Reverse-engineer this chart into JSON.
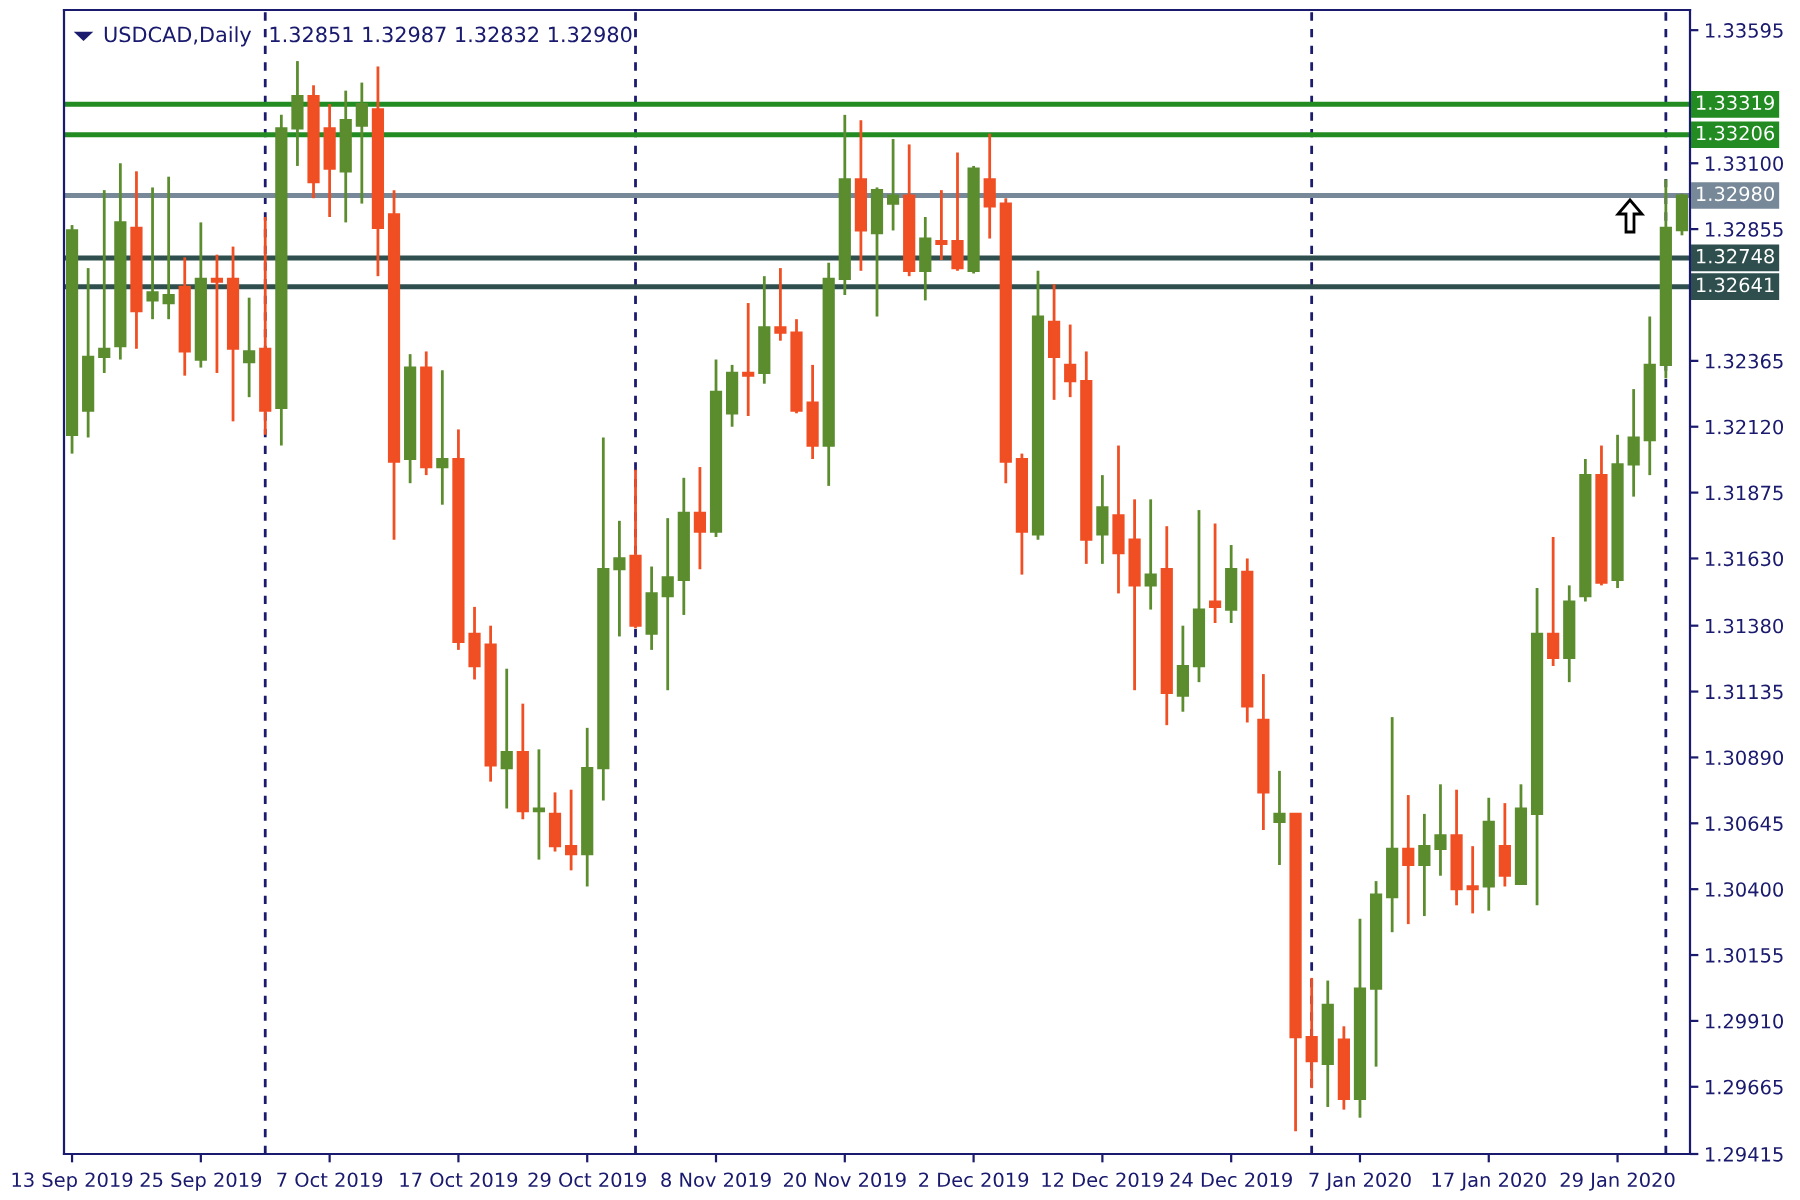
{
  "chart_data": {
    "type": "candlestick",
    "title": "USDCAD,Daily",
    "subtitle": "1.32851 1.32987 1.32832 1.32980",
    "categories": [
      "13 Sep 2019",
      null,
      null,
      null,
      null,
      null,
      null,
      null,
      "25 Sep 2019",
      null,
      null,
      null,
      null,
      null,
      null,
      null,
      "7 Oct 2019",
      null,
      null,
      null,
      null,
      null,
      null,
      null,
      "17 Oct 2019",
      null,
      null,
      null,
      null,
      null,
      null,
      null,
      "29 Oct 2019",
      null,
      null,
      null,
      null,
      null,
      null,
      null,
      "8 Nov 2019",
      null,
      null,
      null,
      null,
      null,
      null,
      null,
      "20 Nov 2019",
      null,
      null,
      null,
      null,
      null,
      null,
      null,
      "2 Dec 2019",
      null,
      null,
      null,
      null,
      null,
      null,
      null,
      "12 Dec 2019",
      null,
      null,
      null,
      null,
      null,
      null,
      null,
      "24 Dec 2019",
      null,
      null,
      null,
      null,
      null,
      null,
      null,
      "7 Jan 2020",
      null,
      null,
      null,
      null,
      null,
      null,
      null,
      "17 Jan 2020",
      null,
      null,
      null,
      null,
      null,
      null,
      null,
      "29 Jan 2020",
      null,
      null,
      null,
      null
    ],
    "ohlc": [
      [
        1.3209,
        1.3287,
        1.3202,
        1.3285
      ],
      [
        1.3218,
        1.3271,
        1.3208,
        1.3238
      ],
      [
        1.3238,
        1.33,
        1.3232,
        1.3241
      ],
      [
        1.3242,
        1.331,
        1.3237,
        1.3288
      ],
      [
        1.3286,
        1.3307,
        1.3241,
        1.3255
      ],
      [
        1.3259,
        1.3301,
        1.3252,
        1.3262
      ],
      [
        1.3258,
        1.3305,
        1.3252,
        1.3261
      ],
      [
        1.3264,
        1.3275,
        1.3231,
        1.324
      ],
      [
        1.3237,
        1.3288,
        1.3234,
        1.3267
      ],
      [
        1.3267,
        1.3276,
        1.3232,
        1.3266
      ],
      [
        1.3267,
        1.3279,
        1.3214,
        1.3241
      ],
      [
        1.3236,
        1.326,
        1.3223,
        1.324
      ],
      [
        1.3241,
        1.329,
        1.3209,
        1.3218
      ],
      [
        1.3219,
        1.3328,
        1.3205,
        1.3323
      ],
      [
        1.3323,
        1.3348,
        1.3309,
        1.3335
      ],
      [
        1.3335,
        1.3339,
        1.3297,
        1.3303
      ],
      [
        1.3323,
        1.3332,
        1.329,
        1.3308
      ],
      [
        1.3307,
        1.3337,
        1.3288,
        1.3326
      ],
      [
        1.3324,
        1.334,
        1.3295,
        1.3332
      ],
      [
        1.333,
        1.3346,
        1.3268,
        1.3286
      ],
      [
        1.3291,
        1.33,
        1.317,
        1.3199
      ],
      [
        1.32,
        1.3239,
        1.3191,
        1.3234
      ],
      [
        1.3234,
        1.324,
        1.3194,
        1.3197
      ],
      [
        1.3197,
        1.3233,
        1.3183,
        1.32
      ],
      [
        1.32,
        1.3211,
        1.3129,
        1.3132
      ],
      [
        1.3135,
        1.3145,
        1.3118,
        1.3123
      ],
      [
        1.3131,
        1.3138,
        1.308,
        1.3086
      ],
      [
        1.3085,
        1.3122,
        1.307,
        1.3091
      ],
      [
        1.3091,
        1.3109,
        1.3066,
        1.3069
      ],
      [
        1.3069,
        1.3092,
        1.3051,
        1.307
      ],
      [
        1.3068,
        1.3076,
        1.3054,
        1.3056
      ],
      [
        1.3056,
        1.3077,
        1.3047,
        1.3053
      ],
      [
        1.3053,
        1.31,
        1.3041,
        1.3085
      ],
      [
        1.3085,
        1.3208,
        1.3073,
        1.3159
      ],
      [
        1.3159,
        1.3177,
        1.3134,
        1.3163
      ],
      [
        1.3164,
        1.3196,
        1.3137,
        1.3138
      ],
      [
        1.3135,
        1.316,
        1.3129,
        1.315
      ],
      [
        1.3149,
        1.3178,
        1.3114,
        1.3156
      ],
      [
        1.3155,
        1.3193,
        1.3142,
        1.318
      ],
      [
        1.318,
        1.3197,
        1.3159,
        1.3173
      ],
      [
        1.3173,
        1.3237,
        1.3171,
        1.3225
      ],
      [
        1.3217,
        1.3235,
        1.3212,
        1.3232
      ],
      [
        1.3232,
        1.3258,
        1.3216,
        1.3231
      ],
      [
        1.3232,
        1.3268,
        1.3228,
        1.3249
      ],
      [
        1.3249,
        1.3271,
        1.3244,
        1.3247
      ],
      [
        1.3247,
        1.3252,
        1.3217,
        1.3218
      ],
      [
        1.3221,
        1.3235,
        1.32,
        1.3205
      ],
      [
        1.3205,
        1.3273,
        1.319,
        1.3267
      ],
      [
        1.3267,
        1.3328,
        1.3261,
        1.3304
      ],
      [
        1.3304,
        1.3326,
        1.327,
        1.3285
      ],
      [
        1.3284,
        1.3301,
        1.3253,
        1.33
      ],
      [
        1.3295,
        1.3319,
        1.3285,
        1.3298
      ],
      [
        1.3298,
        1.3317,
        1.3268,
        1.327
      ],
      [
        1.327,
        1.329,
        1.3259,
        1.3282
      ],
      [
        1.3281,
        1.33,
        1.3274,
        1.328
      ],
      [
        1.3281,
        1.3314,
        1.327,
        1.3271
      ],
      [
        1.327,
        1.3309,
        1.3269,
        1.3308
      ],
      [
        1.3304,
        1.3321,
        1.3282,
        1.3294
      ],
      [
        1.3295,
        1.3297,
        1.3191,
        1.3199
      ],
      [
        1.32,
        1.3202,
        1.3157,
        1.3173
      ],
      [
        1.3172,
        1.327,
        1.317,
        1.3253
      ],
      [
        1.3251,
        1.3265,
        1.3222,
        1.3238
      ],
      [
        1.3235,
        1.325,
        1.3223,
        1.3229
      ],
      [
        1.3229,
        1.324,
        1.3161,
        1.317
      ],
      [
        1.3172,
        1.3194,
        1.3161,
        1.3182
      ],
      [
        1.3179,
        1.3205,
        1.315,
        1.3165
      ],
      [
        1.317,
        1.3185,
        1.3114,
        1.3153
      ],
      [
        1.3153,
        1.3185,
        1.3144,
        1.3157
      ],
      [
        1.3159,
        1.3175,
        1.3101,
        1.3113
      ],
      [
        1.3112,
        1.3138,
        1.3106,
        1.3123
      ],
      [
        1.3123,
        1.3181,
        1.3117,
        1.3144
      ],
      [
        1.3147,
        1.3176,
        1.3139,
        1.3145
      ],
      [
        1.3144,
        1.3168,
        1.3139,
        1.3159
      ],
      [
        1.3158,
        1.3163,
        1.3102,
        1.3108
      ],
      [
        1.3103,
        1.312,
        1.3062,
        1.3076
      ],
      [
        1.3065,
        1.3084,
        1.3049,
        1.3068
      ],
      [
        1.3068,
        1.3068,
        1.295,
        1.2985
      ],
      [
        1.2985,
        1.3007,
        1.2966,
        1.2976
      ],
      [
        1.2975,
        1.3006,
        1.2959,
        1.2997
      ],
      [
        1.2984,
        1.2989,
        1.2958,
        1.2962
      ],
      [
        1.2962,
        1.3029,
        1.2955,
        1.3003
      ],
      [
        1.3003,
        1.3043,
        1.2974,
        1.3038
      ],
      [
        1.3037,
        1.3104,
        1.3024,
        1.3055
      ],
      [
        1.3055,
        1.3075,
        1.3027,
        1.3049
      ],
      [
        1.3049,
        1.3068,
        1.303,
        1.3056
      ],
      [
        1.3055,
        1.3079,
        1.3045,
        1.306
      ],
      [
        1.306,
        1.3077,
        1.3034,
        1.304
      ],
      [
        1.3041,
        1.3056,
        1.3031,
        1.304
      ],
      [
        1.3041,
        1.3074,
        1.3032,
        1.3065
      ],
      [
        1.3056,
        1.3072,
        1.3041,
        1.3045
      ],
      [
        1.3042,
        1.3079,
        1.3042,
        1.307
      ],
      [
        1.3068,
        1.3152,
        1.3034,
        1.3135
      ],
      [
        1.3135,
        1.3171,
        1.3123,
        1.3126
      ],
      [
        1.3126,
        1.3153,
        1.3117,
        1.3147
      ],
      [
        1.3149,
        1.32,
        1.3147,
        1.3194
      ],
      [
        1.3194,
        1.3205,
        1.3153,
        1.3154
      ],
      [
        1.3155,
        1.3209,
        1.3152,
        1.3198
      ],
      [
        1.3198,
        1.3226,
        1.3186,
        1.3208
      ],
      [
        1.3207,
        1.3253,
        1.3194,
        1.3235
      ],
      [
        1.3235,
        1.3304,
        1.323,
        1.3286
      ],
      [
        1.32851,
        1.32987,
        1.32832,
        1.3298
      ]
    ],
    "colors": [
      "#5b8c2e",
      "#5b8c2e",
      "#5b8c2e",
      "#5b8c2e",
      "#f04e23",
      "#5b8c2e",
      "#5b8c2e",
      "#f04e23",
      "#5b8c2e",
      "#f04e23",
      "#f04e23",
      "#5b8c2e",
      "#f04e23",
      "#5b8c2e",
      "#5b8c2e",
      "#f04e23",
      "#f04e23",
      "#5b8c2e",
      "#5b8c2e",
      "#f04e23",
      "#f04e23",
      "#5b8c2e",
      "#f04e23",
      "#5b8c2e",
      "#f04e23",
      "#f04e23",
      "#f04e23",
      "#5b8c2e",
      "#f04e23",
      "#5b8c2e",
      "#f04e23",
      "#f04e23",
      "#5b8c2e",
      "#5b8c2e",
      "#5b8c2e",
      "#f04e23",
      "#5b8c2e",
      "#5b8c2e",
      "#5b8c2e",
      "#f04e23",
      "#5b8c2e",
      "#5b8c2e",
      "#f04e23",
      "#5b8c2e",
      "#f04e23",
      "#f04e23",
      "#f04e23",
      "#5b8c2e",
      "#5b8c2e",
      "#f04e23",
      "#5b8c2e",
      "#5b8c2e",
      "#f04e23",
      "#5b8c2e",
      "#f04e23",
      "#f04e23",
      "#5b8c2e",
      "#f04e23",
      "#f04e23",
      "#f04e23",
      "#5b8c2e",
      "#f04e23",
      "#f04e23",
      "#f04e23",
      "#5b8c2e",
      "#f04e23",
      "#f04e23",
      "#5b8c2e",
      "#f04e23",
      "#5b8c2e",
      "#5b8c2e",
      "#f04e23",
      "#5b8c2e",
      "#f04e23",
      "#f04e23",
      "#5b8c2e",
      "#f04e23",
      "#f04e23",
      "#5b8c2e",
      "#f04e23",
      "#5b8c2e",
      "#5b8c2e",
      "#5b8c2e",
      "#f04e23",
      "#5b8c2e",
      "#5b8c2e",
      "#f04e23",
      "#f04e23",
      "#5b8c2e",
      "#f04e23",
      "#5b8c2e",
      "#5b8c2e",
      "#f04e23",
      "#5b8c2e",
      "#5b8c2e",
      "#f04e23",
      "#5b8c2e",
      "#5b8c2e",
      "#5b8c2e",
      "#5b8c2e",
      "#5b8c2e"
    ],
    "grid": "x",
    "ylim": [
      1.29415,
      1.3367
    ],
    "yticks": [
      {
        "value": 1.33595,
        "label": "1.33595"
      },
      {
        "value": 1.331,
        "label": "1.33100"
      },
      {
        "value": 1.32855,
        "label": "1.32855"
      },
      {
        "value": 1.32365,
        "label": "1.32365"
      },
      {
        "value": 1.3212,
        "label": "1.32120"
      },
      {
        "value": 1.31875,
        "label": "1.31875"
      },
      {
        "value": 1.3163,
        "label": "1.31630"
      },
      {
        "value": 1.3138,
        "label": "1.31380"
      },
      {
        "value": 1.31135,
        "label": "1.31135"
      },
      {
        "value": 1.3089,
        "label": "1.30890"
      },
      {
        "value": 1.30645,
        "label": "1.30645"
      },
      {
        "value": 1.304,
        "label": "1.30400"
      },
      {
        "value": 1.30155,
        "label": "1.30155"
      },
      {
        "value": 1.2991,
        "label": "1.29910"
      },
      {
        "value": 1.29665,
        "label": "1.29665"
      },
      {
        "value": 1.29415,
        "label": "1.29415"
      }
    ],
    "ref_lines": [
      {
        "axis": "y",
        "value": 1.33319,
        "label": "1.33319",
        "color": "#228b22"
      },
      {
        "axis": "y",
        "value": 1.33206,
        "label": "1.33206",
        "color": "#228b22"
      },
      {
        "axis": "y",
        "value": 1.3298,
        "label": "1.32980",
        "color": "#778899"
      },
      {
        "axis": "y",
        "value": 1.32748,
        "label": "1.32748",
        "color": "#2f4f4f"
      },
      {
        "axis": "y",
        "value": 1.32641,
        "label": "1.32641",
        "color": "#2f4f4f"
      }
    ]
  }
}
